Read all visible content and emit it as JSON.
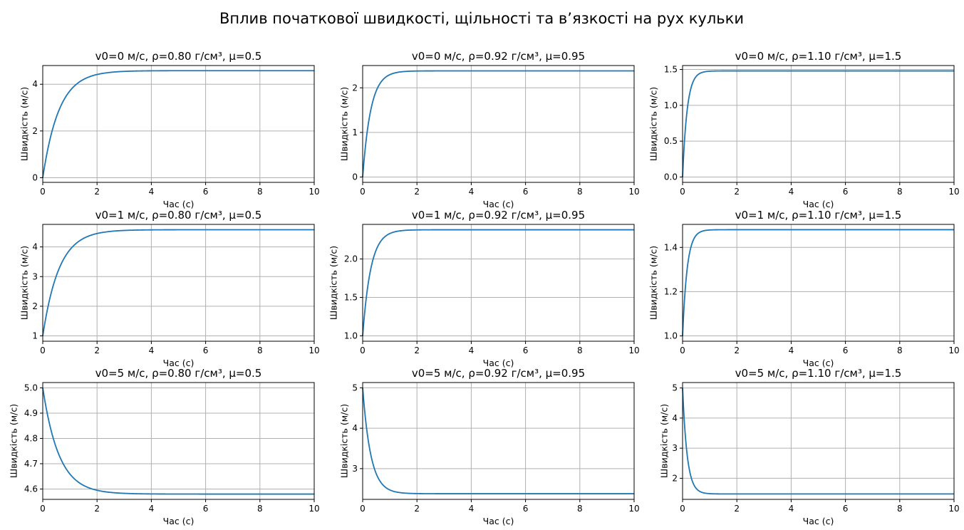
{
  "figure": {
    "suptitle": "Вплив початкової швидкості, щільності та в’язкості на рух кульки",
    "line_color": "#1f77b4",
    "grid_color": "#b0b0b0"
  },
  "chart_data": [
    {
      "type": "line",
      "title": "v0=0 м/с, ρ=0.80 г/см³, μ=0.5",
      "xlabel": "Час (с)",
      "ylabel": "Швидкість (м/с)",
      "xlim": [
        0,
        10
      ],
      "ylim": [
        -0.2,
        4.8
      ],
      "xticks": [
        "0",
        "2",
        "4",
        "6",
        "8",
        "10"
      ],
      "yticks": [
        "0",
        "2",
        "4"
      ],
      "grid": true,
      "series": [
        {
          "model": "exponential_relaxation",
          "v0": 0,
          "v_terminal": 4.58,
          "tau": 0.6
        }
      ]
    },
    {
      "type": "line",
      "title": "v0=0 м/с, ρ=0.92 г/см³, μ=0.95",
      "xlabel": "Час (с)",
      "ylabel": "Швидкість (м/с)",
      "xlim": [
        0,
        10
      ],
      "ylim": [
        -0.12,
        2.5
      ],
      "xticks": [
        "0",
        "2",
        "4",
        "6",
        "8",
        "10"
      ],
      "yticks": [
        "0",
        "1",
        "2"
      ],
      "grid": true,
      "series": [
        {
          "model": "exponential_relaxation",
          "v0": 0,
          "v_terminal": 2.38,
          "tau": 0.3
        }
      ]
    },
    {
      "type": "line",
      "title": "v0=0 м/с, ρ=1.10 г/см³, μ=1.5",
      "xlabel": "Час (с)",
      "ylabel": "Швидкість (м/с)",
      "xlim": [
        0,
        10
      ],
      "ylim": [
        -0.075,
        1.555
      ],
      "xticks": [
        "0",
        "2",
        "4",
        "6",
        "8",
        "10"
      ],
      "yticks": [
        "0.0",
        "0.5",
        "1.0",
        "1.5"
      ],
      "grid": true,
      "series": [
        {
          "model": "exponential_relaxation",
          "v0": 0,
          "v_terminal": 1.48,
          "tau": 0.17
        }
      ]
    },
    {
      "type": "line",
      "title": "v0=1 м/с, ρ=0.80 г/см³, μ=0.5",
      "xlabel": "Час (с)",
      "ylabel": "Швидкість (м/с)",
      "xlim": [
        0,
        10
      ],
      "ylim": [
        0.82,
        4.76
      ],
      "xticks": [
        "0",
        "2",
        "4",
        "6",
        "8",
        "10"
      ],
      "yticks": [
        "1",
        "2",
        "3",
        "4"
      ],
      "grid": true,
      "series": [
        {
          "model": "exponential_relaxation",
          "v0": 1,
          "v_terminal": 4.58,
          "tau": 0.6
        }
      ]
    },
    {
      "type": "line",
      "title": "v0=1 м/с, ρ=0.92 г/см³, μ=0.95",
      "xlabel": "Час (с)",
      "ylabel": "Швидкість (м/с)",
      "xlim": [
        0,
        10
      ],
      "ylim": [
        0.93,
        2.45
      ],
      "xticks": [
        "0",
        "2",
        "4",
        "6",
        "8",
        "10"
      ],
      "yticks": [
        "1.0",
        "1.5",
        "2.0"
      ],
      "grid": true,
      "series": [
        {
          "model": "exponential_relaxation",
          "v0": 1,
          "v_terminal": 2.38,
          "tau": 0.3
        }
      ]
    },
    {
      "type": "line",
      "title": "v0=1 м/с, ρ=1.10 г/см³, μ=1.5",
      "xlabel": "Час (с)",
      "ylabel": "Швидкість (м/с)",
      "xlim": [
        0,
        10
      ],
      "ylim": [
        0.976,
        1.504
      ],
      "xticks": [
        "0",
        "2",
        "4",
        "6",
        "8",
        "10"
      ],
      "yticks": [
        "1.0",
        "1.2",
        "1.4"
      ],
      "grid": true,
      "series": [
        {
          "model": "exponential_relaxation",
          "v0": 1,
          "v_terminal": 1.48,
          "tau": 0.17
        }
      ]
    },
    {
      "type": "line",
      "title": "v0=5 м/с, ρ=0.80 г/см³, μ=0.5",
      "xlabel": "Час (с)",
      "ylabel": "Швидкість (м/с)",
      "xlim": [
        0,
        10
      ],
      "ylim": [
        4.559,
        5.021
      ],
      "xticks": [
        "0",
        "2",
        "4",
        "6",
        "8",
        "10"
      ],
      "yticks": [
        "4.6",
        "4.7",
        "4.8",
        "4.9",
        "5.0"
      ],
      "grid": true,
      "series": [
        {
          "model": "exponential_relaxation",
          "v0": 5,
          "v_terminal": 4.58,
          "tau": 0.6
        }
      ]
    },
    {
      "type": "line",
      "title": "v0=5 м/с, ρ=0.92 г/см³, μ=0.95",
      "xlabel": "Час (с)",
      "ylabel": "Швидкість (м/с)",
      "xlim": [
        0,
        10
      ],
      "ylim": [
        2.24,
        5.13
      ],
      "xticks": [
        "0",
        "2",
        "4",
        "6",
        "8",
        "10"
      ],
      "yticks": [
        "3",
        "4",
        "5"
      ],
      "grid": true,
      "series": [
        {
          "model": "exponential_relaxation",
          "v0": 5,
          "v_terminal": 2.38,
          "tau": 0.3
        }
      ]
    },
    {
      "type": "line",
      "title": "v0=5 м/с, ρ=1.10 г/см³, μ=1.5",
      "xlabel": "Час (с)",
      "ylabel": "Швидкість (м/с)",
      "xlim": [
        0,
        10
      ],
      "ylim": [
        1.3,
        5.18
      ],
      "xticks": [
        "0",
        "2",
        "4",
        "6",
        "8",
        "10"
      ],
      "yticks": [
        "2",
        "3",
        "4",
        "5"
      ],
      "grid": true,
      "series": [
        {
          "model": "exponential_relaxation",
          "v0": 5,
          "v_terminal": 1.48,
          "tau": 0.17
        }
      ]
    }
  ]
}
